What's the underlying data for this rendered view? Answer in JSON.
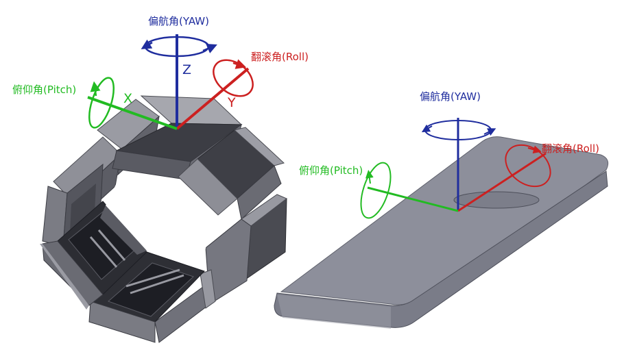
{
  "colors": {
    "yaw": "#1f2d9e",
    "roll": "#cc2020",
    "pitch": "#22bb22",
    "body_light": "#8f9098",
    "body_mid": "#6c6d75",
    "body_dark": "#3a3b42",
    "slot": "#1d1e24",
    "plate_top": "#8d8f9b",
    "plate_edge": "#7a7c88"
  },
  "left_figure": {
    "yaw_label": "偏航角(YAW)",
    "roll_label": "翻滚角(Roll)",
    "pitch_label": "俯仰角(Pitch)",
    "axis_x": "X",
    "axis_y": "Y",
    "axis_z": "Z"
  },
  "right_figure": {
    "yaw_label": "偏航角(YAW)",
    "roll_label": "翻滚角(Roll)",
    "pitch_label": "俯仰角(Pitch)"
  }
}
